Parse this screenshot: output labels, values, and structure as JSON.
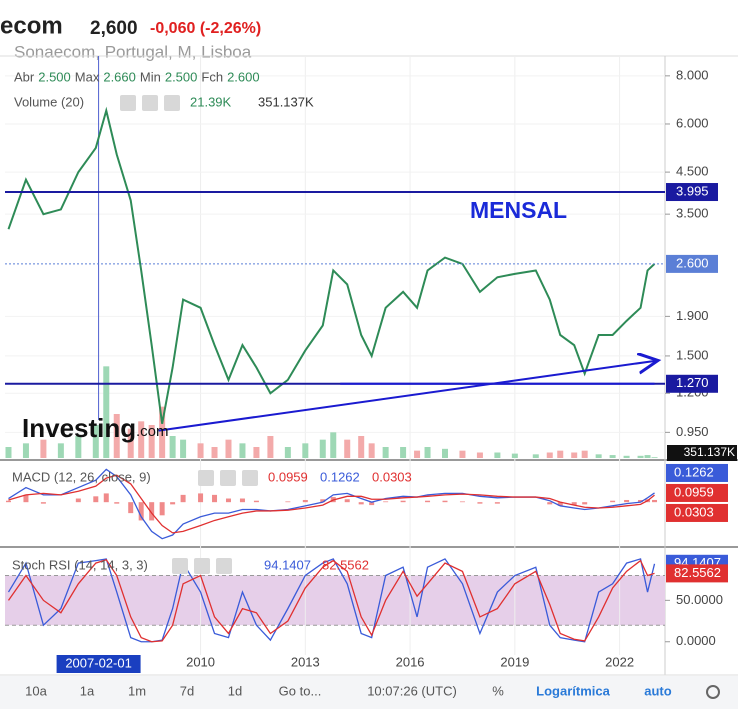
{
  "header": {
    "symbol": "ecom",
    "price": "2,600",
    "change": "-0,060 (-2,26%)",
    "subtitle": "Sonaecom, Portugal, M, Lisboa",
    "ohlc": [
      "Abr",
      "2.500",
      "Max",
      "2.660",
      "Min",
      "2.500",
      "Fch",
      "2.600"
    ],
    "volume": "Volume (20)",
    "volume_values": [
      "21.39K",
      "351.137K"
    ],
    "volume_axis": "351.137K",
    "logo": "Investing",
    "logo_suffix": ".com",
    "annotation": "MENSAL",
    "macd": "MACD (12, 26, close, 9)",
    "stoch": "Stoch RSI (14, 14, 3, 3)"
  },
  "toolbar": {
    "items": [
      "10a",
      "1a",
      "1m",
      "7d",
      "1d",
      "Go to...",
      "10:07:26 (UTC)",
      "%",
      "Logarítmica",
      "auto"
    ]
  },
  "chart_data": [
    {
      "type": "line",
      "log": true,
      "color": "#2e8b57",
      "x": [
        2004.5,
        2005,
        2005.5,
        2006,
        2006.5,
        2007,
        2007.3,
        2007.6,
        2008,
        2008.3,
        2008.6,
        2008.9,
        2009.2,
        2009.5,
        2010,
        2010.4,
        2010.8,
        2011.2,
        2011.6,
        2012,
        2012.5,
        2013,
        2013.5,
        2013.8,
        2014.2,
        2014.6,
        2014.9,
        2015.3,
        2015.8,
        2016.2,
        2016.5,
        2017,
        2017.5,
        2018,
        2018.5,
        2019,
        2019.6,
        2020,
        2020.3,
        2020.7,
        2021,
        2021.4,
        2021.8,
        2022.2,
        2022.6,
        2022.8,
        2023.0
      ],
      "values": [
        3.2,
        4.3,
        3.5,
        3.6,
        4.5,
        5.2,
        6.5,
        5.0,
        3.8,
        2.5,
        1.6,
        1.0,
        1.4,
        2.1,
        2.0,
        1.6,
        1.3,
        1.6,
        1.4,
        1.2,
        1.3,
        1.55,
        1.8,
        2.5,
        2.3,
        1.7,
        1.5,
        2.0,
        2.2,
        2.0,
        2.5,
        2.7,
        2.6,
        2.2,
        2.4,
        2.45,
        2.5,
        2.1,
        1.7,
        1.6,
        1.35,
        1.7,
        1.7,
        1.85,
        2.0,
        2.5,
        2.6
      ],
      "volume": [
        300,
        400,
        500,
        400,
        600,
        900,
        2500,
        1200,
        800,
        1000,
        900,
        1400,
        600,
        500,
        400,
        300,
        500,
        400,
        300,
        600,
        300,
        400,
        500,
        700,
        500,
        600,
        400,
        300,
        300,
        200,
        300,
        250,
        200,
        150,
        150,
        120,
        100,
        150,
        200,
        150,
        200,
        100,
        80,
        60,
        60,
        80,
        21.39
      ],
      "vlim": [
        0,
        3000
      ],
      "xlim": [
        2004.4,
        2023.3
      ],
      "xticks": [
        2010,
        2013,
        2016,
        2019,
        2022
      ],
      "ylim": [
        0.815,
        8.9
      ],
      "yticks": [
        {
          "value": 8,
          "label": "8.000"
        },
        {
          "value": 6,
          "label": "6.000"
        },
        {
          "value": 4.5,
          "label": "4.500"
        },
        {
          "value": 3.5,
          "label": "3.500"
        },
        {
          "value": 1.9,
          "label": "1.900"
        },
        {
          "value": 1.5,
          "label": "1.500"
        },
        {
          "value": 1.2,
          "label": "1.200"
        },
        {
          "value": 0.95,
          "label": "0.950"
        }
      ],
      "hlines": [
        {
          "value": 3.995,
          "label": "3.995",
          "color": "#1a1aa0"
        },
        {
          "value": 2.6,
          "label": "2.600",
          "color": "#5b7fd6"
        },
        {
          "value": 1.27,
          "label": "1.270",
          "color": "#1a1aa0"
        }
      ],
      "trendlines": [
        {
          "x": [
            2008.8,
            2023.1
          ],
          "y": [
            0.96,
            1.46
          ]
        },
        {
          "x": [
            2014.0,
            2023.0
          ],
          "y": [
            1.27,
            1.27
          ]
        }
      ],
      "crosshair": {
        "value": 2007.08,
        "label": "2007-02-01"
      }
    },
    {
      "type": "macd",
      "ylim": [
        -0.6,
        0.55
      ],
      "series": [
        {
          "color": "#3a5bd9",
          "values": [
            0.05,
            0.2,
            0.1,
            0.1,
            0.2,
            0.3,
            0.45,
            0.35,
            0.1,
            -0.2,
            -0.4,
            -0.5,
            -0.45,
            -0.3,
            -0.2,
            -0.15,
            -0.15,
            -0.1,
            -0.1,
            -0.12,
            -0.1,
            -0.05,
            0.0,
            0.1,
            0.12,
            0.05,
            0.0,
            0.05,
            0.08,
            0.07,
            0.1,
            0.12,
            0.12,
            0.08,
            0.06,
            0.07,
            0.07,
            0.02,
            -0.05,
            -0.08,
            -0.1,
            -0.08,
            -0.05,
            -0.02,
            0.0,
            0.06,
            0.1262
          ]
        },
        {
          "color": "#e03030",
          "values": [
            0.03,
            0.1,
            0.12,
            0.1,
            0.15,
            0.22,
            0.33,
            0.37,
            0.25,
            0.05,
            -0.15,
            -0.32,
            -0.42,
            -0.4,
            -0.32,
            -0.25,
            -0.2,
            -0.15,
            -0.12,
            -0.12,
            -0.11,
            -0.08,
            -0.04,
            0.03,
            0.08,
            0.08,
            0.04,
            0.04,
            0.06,
            0.07,
            0.08,
            0.1,
            0.11,
            0.1,
            0.08,
            0.07,
            0.07,
            0.05,
            0.0,
            -0.04,
            -0.07,
            -0.08,
            -0.07,
            -0.05,
            -0.03,
            0.02,
            0.0959
          ]
        }
      ],
      "histogram": {
        "color": "#f08a8a",
        "values": [
          0.02,
          0.1,
          -0.02,
          0,
          0.05,
          0.08,
          0.12,
          -0.02,
          -0.15,
          -0.25,
          -0.25,
          -0.18,
          -0.03,
          0.1,
          0.12,
          0.1,
          0.05,
          0.05,
          0.02,
          0,
          0.01,
          0.03,
          0.04,
          0.07,
          0.04,
          -0.03,
          -0.04,
          0.01,
          0.02,
          0,
          0.02,
          0.02,
          0.01,
          -0.02,
          -0.02,
          0,
          0,
          -0.03,
          -0.05,
          -0.04,
          -0.03,
          0,
          0.02,
          0.03,
          0.03,
          0.04,
          0.0303
        ]
      }
    },
    {
      "type": "stoch",
      "ylim": [
        -16,
        112
      ],
      "band": [
        20,
        80
      ],
      "band_color": "#e6cfe9",
      "yticks": [
        {
          "value": 50,
          "label": "50.0000"
        },
        {
          "value": 0,
          "label": "0.0000"
        }
      ],
      "series": [
        {
          "color": "#3a5bd9",
          "values": [
            60,
            95,
            20,
            40,
            95,
            98,
            100,
            60,
            5,
            0,
            0,
            2,
            40,
            95,
            60,
            10,
            5,
            60,
            20,
            2,
            40,
            80,
            95,
            100,
            70,
            10,
            5,
            80,
            90,
            30,
            90,
            100,
            70,
            10,
            60,
            80,
            90,
            20,
            5,
            2,
            0,
            60,
            70,
            95,
            100,
            60,
            94.1407
          ]
        },
        {
          "color": "#e03030",
          "values": [
            50,
            80,
            50,
            35,
            70,
            95,
            99,
            80,
            30,
            5,
            0,
            1,
            20,
            70,
            80,
            30,
            10,
            40,
            35,
            10,
            25,
            65,
            90,
            98,
            85,
            30,
            8,
            50,
            85,
            55,
            70,
            95,
            85,
            30,
            40,
            70,
            85,
            45,
            10,
            3,
            1,
            30,
            65,
            85,
            98,
            80,
            82.5562
          ]
        }
      ]
    }
  ]
}
